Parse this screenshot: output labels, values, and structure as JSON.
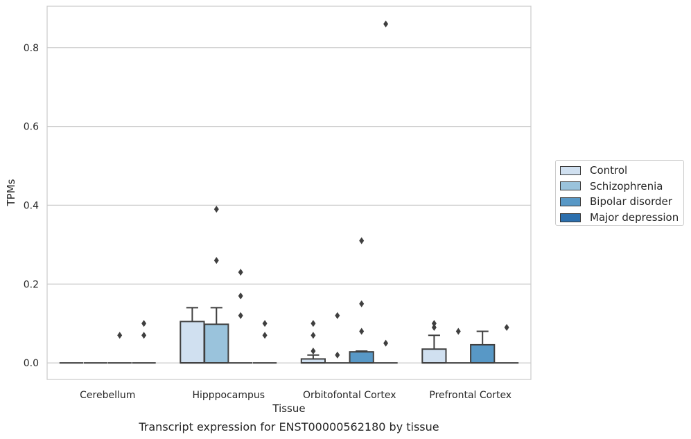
{
  "chart_data": {
    "type": "box",
    "title": "Transcript expression for ENST00000562180 by tissue",
    "xlabel": "Tissue",
    "ylabel": "TPMs",
    "ylim": [
      -0.042,
      0.905
    ],
    "yticks": [
      0.0,
      0.2,
      0.4,
      0.6,
      0.8
    ],
    "ytick_labels": [
      "0.0",
      "0.2",
      "0.4",
      "0.6",
      "0.8"
    ],
    "grid": "horizontal",
    "legend_position": "right",
    "categories": [
      "Cerebellum",
      "Hipppocampus",
      "Orbitofontal Cortex",
      "Prefrontal Cortex"
    ],
    "series": [
      {
        "name": "Control",
        "color": "#d0e0f0",
        "boxes": [
          {
            "q1": 0,
            "median": 0,
            "q3": 0,
            "whisker_low": 0,
            "whisker_high": 0,
            "outliers": []
          },
          {
            "q1": 0,
            "median": 0,
            "q3": 0.105,
            "whisker_low": 0,
            "whisker_high": 0.14,
            "outliers": []
          },
          {
            "q1": 0,
            "median": 0,
            "q3": 0.01,
            "whisker_low": 0,
            "whisker_high": 0.02,
            "outliers": [
              0.03,
              0.07,
              0.1
            ]
          },
          {
            "q1": 0,
            "median": 0,
            "q3": 0.035,
            "whisker_low": 0,
            "whisker_high": 0.07,
            "outliers": [
              0.09,
              0.1
            ]
          }
        ]
      },
      {
        "name": "Schizophrenia",
        "color": "#9ac3dc",
        "boxes": [
          {
            "q1": 0,
            "median": 0,
            "q3": 0,
            "whisker_low": 0,
            "whisker_high": 0,
            "outliers": []
          },
          {
            "q1": 0,
            "median": 0,
            "q3": 0.098,
            "whisker_low": 0,
            "whisker_high": 0.14,
            "outliers": [
              0.26,
              0.39
            ]
          },
          {
            "q1": 0,
            "median": 0,
            "q3": 0,
            "whisker_low": 0,
            "whisker_high": 0,
            "outliers": [
              0.02,
              0.12
            ]
          },
          {
            "q1": 0,
            "median": 0,
            "q3": 0,
            "whisker_low": 0,
            "whisker_high": 0,
            "outliers": [
              0.08
            ]
          }
        ]
      },
      {
        "name": "Bipolar disorder",
        "color": "#5898c6",
        "boxes": [
          {
            "q1": 0,
            "median": 0,
            "q3": 0,
            "whisker_low": 0,
            "whisker_high": 0,
            "outliers": [
              0.07
            ]
          },
          {
            "q1": 0,
            "median": 0,
            "q3": 0,
            "whisker_low": 0,
            "whisker_high": 0,
            "outliers": [
              0.12,
              0.17,
              0.23
            ]
          },
          {
            "q1": 0,
            "median": 0,
            "q3": 0.028,
            "whisker_low": 0,
            "whisker_high": 0.03,
            "outliers": [
              0.08,
              0.15,
              0.31
            ]
          },
          {
            "q1": 0,
            "median": 0,
            "q3": 0.046,
            "whisker_low": 0,
            "whisker_high": 0.08,
            "outliers": []
          }
        ]
      },
      {
        "name": "Major depression",
        "color": "#2c6fad",
        "boxes": [
          {
            "q1": 0,
            "median": 0,
            "q3": 0,
            "whisker_low": 0,
            "whisker_high": 0,
            "outliers": [
              0.07,
              0.1
            ]
          },
          {
            "q1": 0,
            "median": 0,
            "q3": 0,
            "whisker_low": 0,
            "whisker_high": 0,
            "outliers": [
              0.07,
              0.1
            ]
          },
          {
            "q1": 0,
            "median": 0,
            "q3": 0,
            "whisker_low": 0,
            "whisker_high": 0,
            "outliers": [
              0.05,
              0.86
            ]
          },
          {
            "q1": 0,
            "median": 0,
            "q3": 0,
            "whisker_low": 0,
            "whisker_high": 0,
            "outliers": [
              0.09
            ]
          }
        ]
      }
    ]
  }
}
